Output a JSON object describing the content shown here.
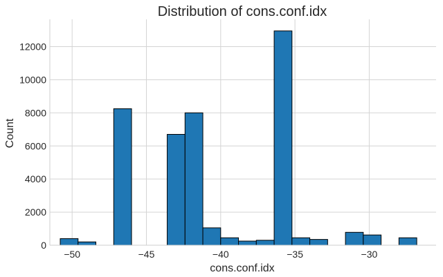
{
  "chart_data": {
    "type": "bar",
    "title": "Distribution of cons.conf.idx",
    "xlabel": "cons.conf.idx",
    "ylabel": "Count",
    "xlim": [
      -51.5,
      -25.5
    ],
    "ylim": [
      0,
      13650
    ],
    "xticks": [
      -50,
      -45,
      -40,
      -35,
      -30
    ],
    "xtick_labels": [
      "−50",
      "−45",
      "−40",
      "−35",
      "−30"
    ],
    "yticks": [
      0,
      2000,
      4000,
      6000,
      8000,
      10000,
      12000
    ],
    "ytick_labels": [
      "0",
      "2000",
      "4000",
      "6000",
      "8000",
      "10000",
      "12000"
    ],
    "grid": true,
    "bar_color": "#1f77b4",
    "edge_color": "#000000",
    "bins": [
      {
        "x0": -50.8,
        "x1": -49.6,
        "count": 400
      },
      {
        "x0": -49.6,
        "x1": -48.4,
        "count": 200
      },
      {
        "x0": -47.2,
        "x1": -46.0,
        "count": 8250
      },
      {
        "x0": -43.6,
        "x1": -42.4,
        "count": 6700
      },
      {
        "x0": -42.4,
        "x1": -41.2,
        "count": 8000
      },
      {
        "x0": -41.2,
        "x1": -40.0,
        "count": 1050
      },
      {
        "x0": -40.0,
        "x1": -38.8,
        "count": 450
      },
      {
        "x0": -38.8,
        "x1": -37.6,
        "count": 250
      },
      {
        "x0": -37.6,
        "x1": -36.4,
        "count": 300
      },
      {
        "x0": -36.4,
        "x1": -35.2,
        "count": 12950
      },
      {
        "x0": -35.2,
        "x1": -34.0,
        "count": 450
      },
      {
        "x0": -34.0,
        "x1": -32.8,
        "count": 350
      },
      {
        "x0": -31.6,
        "x1": -30.4,
        "count": 780
      },
      {
        "x0": -30.4,
        "x1": -29.2,
        "count": 620
      },
      {
        "x0": -28.0,
        "x1": -26.8,
        "count": 450
      }
    ]
  }
}
